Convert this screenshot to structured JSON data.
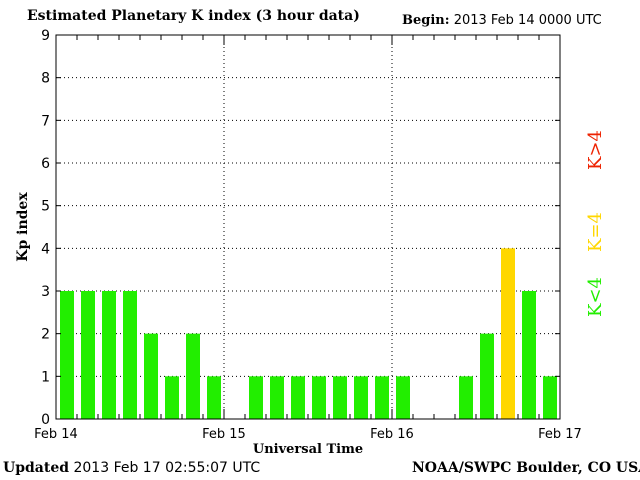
{
  "header": {
    "title": "Estimated Planetary K index (3 hour data)",
    "begin_label": "Begin:",
    "begin_value": "2013 Feb 14 0000 UTC"
  },
  "footer": {
    "updated_label": "Updated",
    "updated_value": "2013 Feb 17 02:55:07 UTC",
    "credit": "NOAA/SWPC Boulder, CO USA"
  },
  "colors": {
    "below_storm": "#22ee00",
    "storm_threshold": "#ffd700",
    "storm": "#ee2200",
    "grid": "#000000"
  },
  "chart_data": {
    "type": "bar",
    "title": "Estimated Planetary K index (3 hour data)",
    "xlabel": "Universal Time",
    "ylabel": "Kp index",
    "ylim": [
      0,
      9
    ],
    "yticks": [
      0,
      1,
      2,
      3,
      4,
      5,
      6,
      7,
      8,
      9
    ],
    "xticks": [
      "Feb 14",
      "Feb 15",
      "Feb 16",
      "Feb 17"
    ],
    "grid": true,
    "bins_per_day": 8,
    "values": [
      3,
      3,
      3,
      3,
      2,
      1,
      2,
      1,
      null,
      1,
      1,
      1,
      1,
      1,
      1,
      1,
      1,
      null,
      null,
      1,
      2,
      4,
      3,
      1
    ],
    "legend": [
      {
        "label": "K<4",
        "color": "#22ee00"
      },
      {
        "label": "K=4",
        "color": "#ffd700"
      },
      {
        "label": "K>4",
        "color": "#ee2200"
      }
    ]
  }
}
